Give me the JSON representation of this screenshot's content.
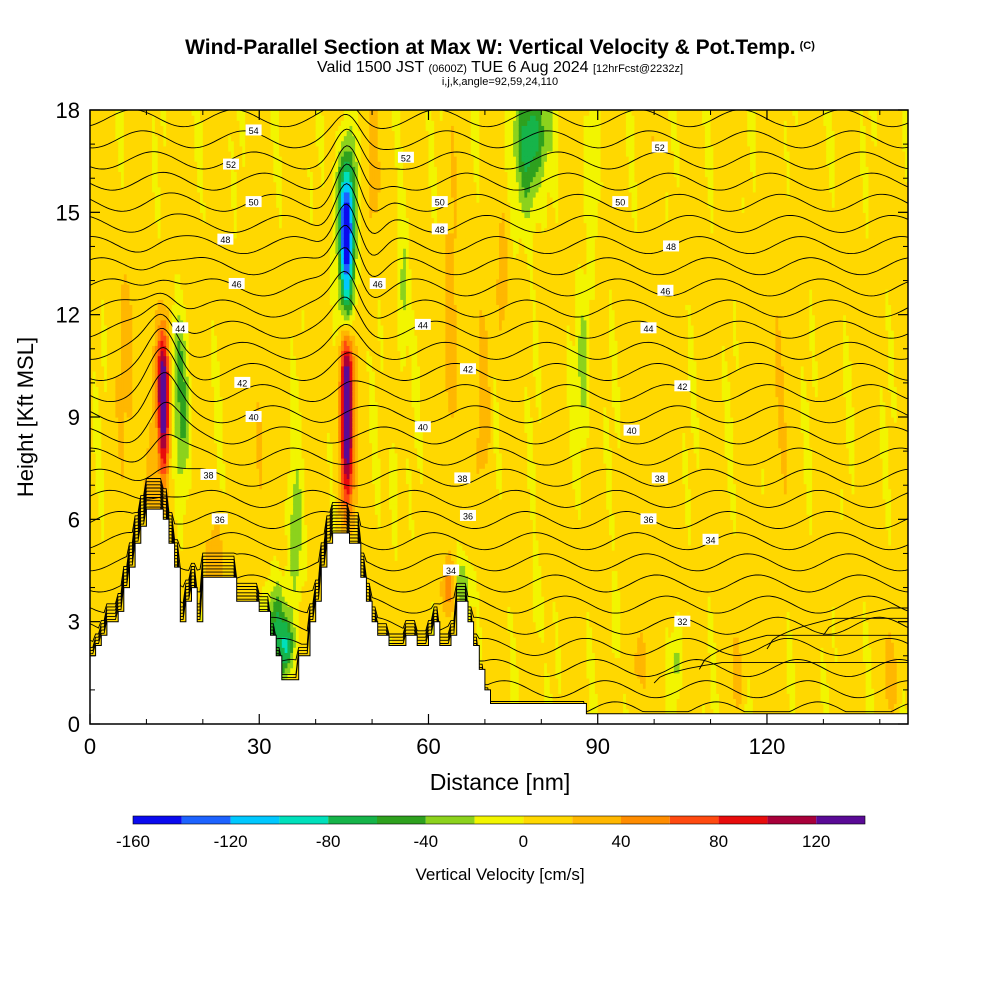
{
  "header": {
    "title": "Wind-Parallel Section at Max W: Vertical Velocity & Pot.Temp.",
    "copyright": "(C)",
    "valid_main": "Valid 1500 JST",
    "valid_utc": "(0600Z)",
    "valid_date": "TUE 6 Aug 2024",
    "forecast": "[12hrFcst@2232z]",
    "indices": "i,j,k,angle=92,59,24,110"
  },
  "chart_data": {
    "type": "heatmap",
    "xlabel": "Distance [nm]",
    "ylabel": "Height [Kft MSL]",
    "xlim": [
      0,
      145
    ],
    "ylim": [
      0,
      18
    ],
    "x_ticks": [
      0,
      30,
      60,
      90,
      120
    ],
    "y_ticks": [
      0,
      3,
      6,
      9,
      12,
      15,
      18
    ],
    "colorbar": {
      "label": "Vertical Velocity [cm/s]",
      "range": [
        -160,
        140
      ],
      "step": 20,
      "tick_values": [
        -160,
        -120,
        -80,
        -40,
        0,
        40,
        80,
        120
      ],
      "colors": [
        "#0a0aef",
        "#1d63ff",
        "#00c8ff",
        "#00e0bb",
        "#16b44a",
        "#2ea11e",
        "#8cd21d",
        "#f2f500",
        "#ffd800",
        "#ffb700",
        "#ff8c00",
        "#ff4a10",
        "#e80c0c",
        "#a8003a",
        "#5a0a96"
      ]
    },
    "terrain_kft": [
      [
        0,
        2
      ],
      [
        1,
        2
      ],
      [
        1,
        2.3
      ],
      [
        2,
        2.3
      ],
      [
        2,
        2.6
      ],
      [
        3,
        2.6
      ],
      [
        3,
        3
      ],
      [
        5,
        3
      ],
      [
        5,
        3.3
      ],
      [
        6,
        3.3
      ],
      [
        6,
        4
      ],
      [
        7,
        4
      ],
      [
        7,
        4.6
      ],
      [
        8,
        4.6
      ],
      [
        8,
        5.3
      ],
      [
        9,
        5.3
      ],
      [
        9,
        5.8
      ],
      [
        10,
        5.8
      ],
      [
        10,
        6.3
      ],
      [
        13,
        6.3
      ],
      [
        13,
        6
      ],
      [
        14,
        6
      ],
      [
        14,
        5.3
      ],
      [
        15,
        5.3
      ],
      [
        15,
        4.6
      ],
      [
        16,
        4.6
      ],
      [
        16,
        3
      ],
      [
        17,
        3
      ],
      [
        17,
        3.6
      ],
      [
        18,
        3.6
      ],
      [
        18,
        4
      ],
      [
        19,
        4
      ],
      [
        19,
        3
      ],
      [
        20,
        3
      ],
      [
        20,
        4.3
      ],
      [
        26,
        4.3
      ],
      [
        26,
        3.6
      ],
      [
        30,
        3.6
      ],
      [
        30,
        3.3
      ],
      [
        32,
        3.3
      ],
      [
        32,
        2.6
      ],
      [
        33,
        2.6
      ],
      [
        33,
        2
      ],
      [
        34,
        2
      ],
      [
        34,
        1.3
      ],
      [
        37,
        1.3
      ],
      [
        37,
        2
      ],
      [
        39,
        2
      ],
      [
        39,
        3
      ],
      [
        40,
        3
      ],
      [
        40,
        3.6
      ],
      [
        41,
        3.6
      ],
      [
        41,
        4.6
      ],
      [
        42,
        4.6
      ],
      [
        42,
        5.3
      ],
      [
        43,
        5.3
      ],
      [
        43,
        5.6
      ],
      [
        46,
        5.6
      ],
      [
        46,
        5.3
      ],
      [
        48,
        5.3
      ],
      [
        48,
        4.3
      ],
      [
        49,
        4.3
      ],
      [
        49,
        3.6
      ],
      [
        50,
        3.6
      ],
      [
        50,
        3
      ],
      [
        51,
        3
      ],
      [
        51,
        2.6
      ],
      [
        53,
        2.6
      ],
      [
        53,
        2.3
      ],
      [
        56,
        2.3
      ],
      [
        56,
        2.6
      ],
      [
        58,
        2.6
      ],
      [
        58,
        2.3
      ],
      [
        60,
        2.3
      ],
      [
        60,
        2.6
      ],
      [
        61,
        2.6
      ],
      [
        61,
        3
      ],
      [
        62,
        3
      ],
      [
        62,
        2.3
      ],
      [
        64,
        2.3
      ],
      [
        64,
        2.6
      ],
      [
        65,
        2.6
      ],
      [
        65,
        3.6
      ],
      [
        67,
        3.6
      ],
      [
        67,
        3
      ],
      [
        68,
        3
      ],
      [
        68,
        2.3
      ],
      [
        69,
        2.3
      ],
      [
        69,
        1.6
      ],
      [
        70,
        1.6
      ],
      [
        70,
        1
      ],
      [
        71,
        1
      ],
      [
        71,
        0.6
      ],
      [
        88,
        0.6
      ],
      [
        88,
        0.3
      ],
      [
        145,
        0.3
      ]
    ],
    "theta_labels": [
      {
        "text": "54",
        "x": 29,
        "y": 17.4
      },
      {
        "text": "52",
        "x": 25,
        "y": 16.4
      },
      {
        "text": "50",
        "x": 29,
        "y": 15.3
      },
      {
        "text": "48",
        "x": 24,
        "y": 14.2
      },
      {
        "text": "46",
        "x": 26,
        "y": 12.9
      },
      {
        "text": "44",
        "x": 16,
        "y": 11.6
      },
      {
        "text": "42",
        "x": 27,
        "y": 10.0
      },
      {
        "text": "40",
        "x": 29,
        "y": 9.0
      },
      {
        "text": "38",
        "x": 21,
        "y": 7.3
      },
      {
        "text": "36",
        "x": 23,
        "y": 6.0
      },
      {
        "text": "52",
        "x": 56,
        "y": 16.6
      },
      {
        "text": "50",
        "x": 62,
        "y": 15.3
      },
      {
        "text": "48",
        "x": 62,
        "y": 14.5
      },
      {
        "text": "46",
        "x": 51,
        "y": 12.9
      },
      {
        "text": "44",
        "x": 59,
        "y": 11.7
      },
      {
        "text": "42",
        "x": 67,
        "y": 10.4
      },
      {
        "text": "40",
        "x": 59,
        "y": 8.7
      },
      {
        "text": "38",
        "x": 66,
        "y": 7.2
      },
      {
        "text": "36",
        "x": 67,
        "y": 6.1
      },
      {
        "text": "34",
        "x": 64,
        "y": 4.5
      },
      {
        "text": "52",
        "x": 101,
        "y": 16.9
      },
      {
        "text": "50",
        "x": 94,
        "y": 15.3
      },
      {
        "text": "48",
        "x": 103,
        "y": 14.0
      },
      {
        "text": "46",
        "x": 102,
        "y": 12.7
      },
      {
        "text": "44",
        "x": 99,
        "y": 11.6
      },
      {
        "text": "42",
        "x": 105,
        "y": 9.9
      },
      {
        "text": "40",
        "x": 96,
        "y": 8.6
      },
      {
        "text": "38",
        "x": 101,
        "y": 7.2
      },
      {
        "text": "36",
        "x": 99,
        "y": 6.0
      },
      {
        "text": "34",
        "x": 110,
        "y": 5.4
      },
      {
        "text": "32",
        "x": 105,
        "y": 3.0
      }
    ]
  }
}
